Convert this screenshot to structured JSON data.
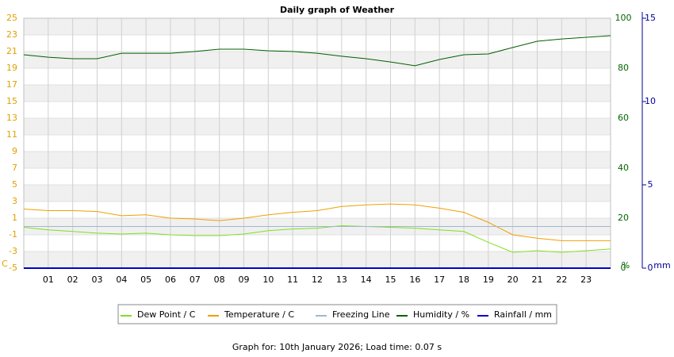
{
  "chart_data": {
    "type": "line",
    "title": "Daily graph of Weather",
    "xlim": [
      0,
      24
    ],
    "xticks": [
      {
        "value": 1,
        "label": "01"
      },
      {
        "value": 2,
        "label": "02"
      },
      {
        "value": 3,
        "label": "03"
      },
      {
        "value": 4,
        "label": "04"
      },
      {
        "value": 5,
        "label": "05"
      },
      {
        "value": 6,
        "label": "06"
      },
      {
        "value": 7,
        "label": "07"
      },
      {
        "value": 8,
        "label": "08"
      },
      {
        "value": 9,
        "label": "09"
      },
      {
        "value": 10,
        "label": "10"
      },
      {
        "value": 11,
        "label": "11"
      },
      {
        "value": 12,
        "label": "12"
      },
      {
        "value": 13,
        "label": "13"
      },
      {
        "value": 14,
        "label": "14"
      },
      {
        "value": 15,
        "label": "15"
      },
      {
        "value": 16,
        "label": "16"
      },
      {
        "value": 17,
        "label": "17"
      },
      {
        "value": 18,
        "label": "18"
      },
      {
        "value": 19,
        "label": "19"
      },
      {
        "value": 20,
        "label": "20"
      },
      {
        "value": 21,
        "label": "21"
      },
      {
        "value": 22,
        "label": "22"
      },
      {
        "value": 23,
        "label": "23"
      }
    ],
    "ylim": [
      -5,
      25
    ],
    "yticks": [
      -5,
      -3,
      -1,
      1,
      3,
      5,
      7,
      9,
      11,
      13,
      15,
      17,
      19,
      21,
      23,
      25
    ],
    "y_label": "C",
    "y_color": "#e0a000",
    "y2lim": [
      0,
      100
    ],
    "y2ticks": [
      0,
      20,
      40,
      60,
      80,
      100
    ],
    "y2_label": "%",
    "y2_color": "#006600",
    "y3lim": [
      0,
      15
    ],
    "y3ticks": [
      0,
      5,
      10,
      15
    ],
    "y3_label": "mm",
    "y3_color": "#000099",
    "grid": true,
    "series": [
      {
        "name": "Dew Point / C",
        "color": "#80e020",
        "x": [
          0,
          1,
          2,
          3,
          4,
          5,
          6,
          7,
          8,
          9,
          10,
          11,
          12,
          13,
          14,
          15,
          16,
          17,
          18,
          19,
          20,
          21,
          22,
          23,
          24
        ],
        "values": [
          -0.1,
          -0.4,
          -0.6,
          -0.8,
          -0.9,
          -0.8,
          -1.0,
          -1.1,
          -1.1,
          -0.9,
          -0.5,
          -0.3,
          -0.2,
          0.1,
          0,
          -0.1,
          -0.2,
          -0.4,
          -0.6,
          -1.9,
          -3.1,
          -2.9,
          -3.1,
          -2.9,
          -2.7
        ]
      },
      {
        "name": "Temperature / C",
        "color": "#f0a000",
        "x": [
          0,
          1,
          2,
          3,
          4,
          5,
          6,
          7,
          8,
          9,
          10,
          11,
          12,
          13,
          14,
          15,
          16,
          17,
          18,
          19,
          20,
          21,
          22,
          23,
          24
        ],
        "values": [
          2.1,
          1.9,
          1.9,
          1.8,
          1.3,
          1.4,
          1.0,
          0.9,
          0.7,
          1.0,
          1.4,
          1.7,
          1.9,
          2.4,
          2.6,
          2.7,
          2.6,
          2.2,
          1.7,
          0.5,
          -1.0,
          -1.4,
          -1.7,
          -1.7,
          -1.7
        ]
      },
      {
        "name": "Freezing Line",
        "color": "#a0b8d0",
        "x": [
          0,
          24
        ],
        "values": [
          0,
          0
        ]
      },
      {
        "name": "Humidity / %",
        "color": "#006000",
        "axis": "y2",
        "x": [
          0,
          1,
          2,
          3,
          4,
          5,
          6,
          7,
          8,
          9,
          10,
          11,
          12,
          13,
          14,
          15,
          16,
          17,
          18,
          19,
          20,
          21,
          22,
          23,
          24
        ],
        "values": [
          85.4,
          84.4,
          83.8,
          83.8,
          86.0,
          86.0,
          86.0,
          86.7,
          87.6,
          87.6,
          87.0,
          86.7,
          86.0,
          84.8,
          83.8,
          82.5,
          81.0,
          83.5,
          85.4,
          85.7,
          88.3,
          90.8,
          91.7,
          92.4,
          93.0
        ]
      },
      {
        "name": "Rainfall / mm",
        "color": "#0000cc",
        "axis": "y3",
        "x": [
          0,
          24
        ],
        "values": [
          0,
          0
        ]
      }
    ],
    "footer": "Graph for: 10th January 2026; Load time: 0.07 s"
  }
}
